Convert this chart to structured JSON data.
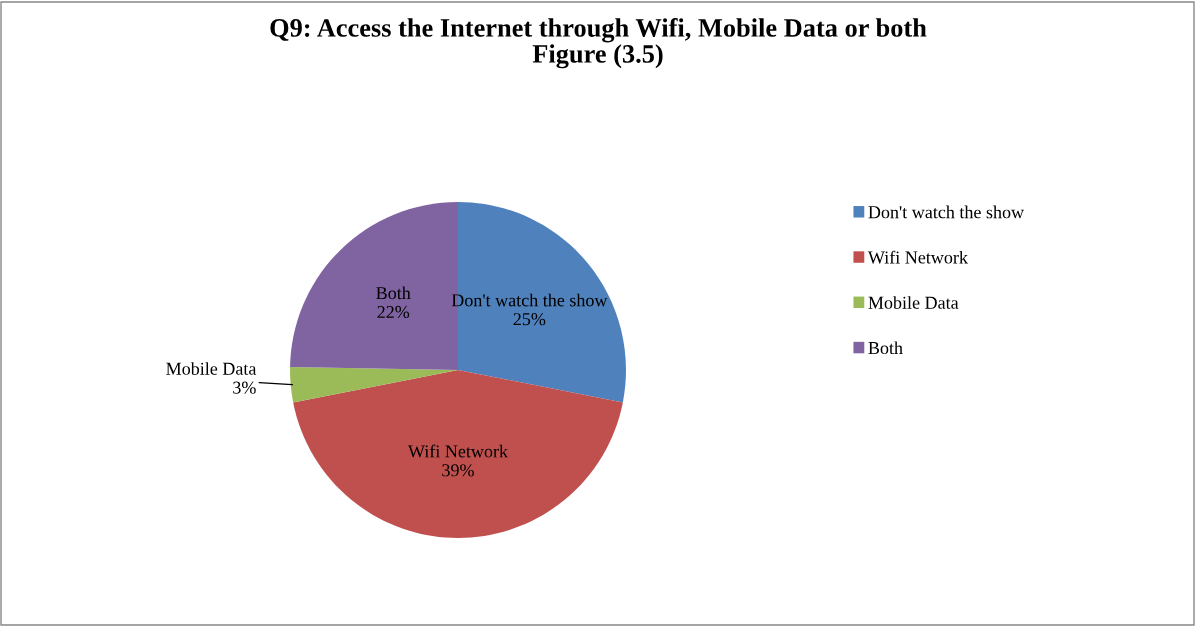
{
  "chart_data": {
    "type": "pie",
    "title": "Q9: Access the Internet through Wifi, Mobile Data or both\nFigure (3.5)",
    "categories": [
      "Don't watch the show",
      "Wifi Network",
      "Mobile Data",
      "Both"
    ],
    "values": [
      25,
      39,
      3,
      22
    ],
    "value_labels": [
      "25%",
      "39%",
      "3%",
      "22%"
    ],
    "colors": [
      "#4f81bd",
      "#c0504d",
      "#9bbb59",
      "#8064a2"
    ],
    "legend": "right"
  }
}
